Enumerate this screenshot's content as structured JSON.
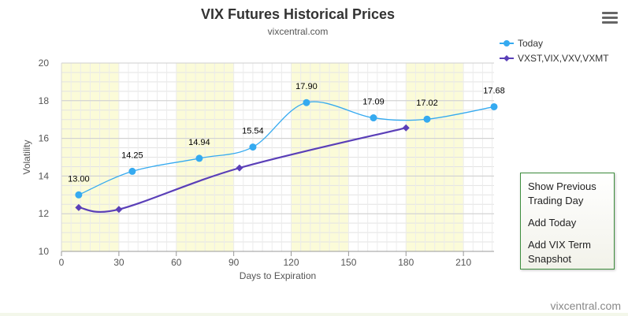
{
  "chart_data": {
    "type": "line",
    "title": "VIX Futures Historical Prices",
    "subtitle": "vixcentral.com",
    "xlabel": "Days to Expiration",
    "ylabel": "Volatility",
    "xlim": [
      0,
      226
    ],
    "ylim": [
      10,
      20
    ],
    "xticks": [
      0,
      30,
      60,
      90,
      120,
      150,
      180,
      210
    ],
    "yticks": [
      10,
      12,
      14,
      16,
      18,
      20
    ],
    "grid": true,
    "bands": [
      [
        0,
        30
      ],
      [
        60,
        90
      ],
      [
        120,
        150
      ],
      [
        180,
        210
      ]
    ],
    "legend_position": "top-right",
    "series": [
      {
        "name": "Today",
        "color": "#35aaf0",
        "marker": "circle",
        "points": [
          [
            9,
            13.0
          ],
          [
            37,
            14.25
          ],
          [
            72,
            14.94
          ],
          [
            100,
            15.54
          ],
          [
            128,
            17.9
          ],
          [
            163,
            17.09
          ],
          [
            191,
            17.02
          ],
          [
            226,
            17.68
          ]
        ],
        "labels": [
          "13.00",
          "14.25",
          "14.94",
          "15.54",
          "17.90",
          "17.09",
          "17.02",
          "17.68"
        ]
      },
      {
        "name": "VXST,VIX,VXV,VXMT",
        "color": "#5a3fb8",
        "marker": "diamond",
        "points": [
          [
            9,
            12.33
          ],
          [
            30,
            12.23
          ],
          [
            93,
            14.43
          ],
          [
            180,
            16.56
          ]
        ]
      }
    ]
  },
  "menu": {
    "items": [
      "Show Previous Trading Day",
      "Add Today",
      "Add VIX Term Snapshot"
    ],
    "lines": [
      [
        "Show Previous",
        "Trading Day"
      ],
      [
        "Add Today"
      ],
      [
        "Add VIX Term",
        "Snapshot"
      ]
    ]
  },
  "credit": "vixcentral.com"
}
